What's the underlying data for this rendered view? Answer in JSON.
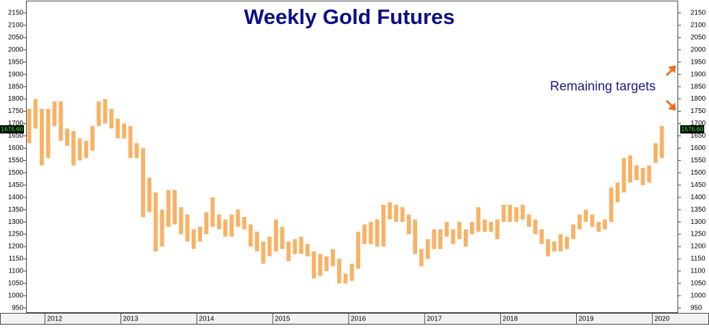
{
  "chart_data": {
    "type": "range_bar",
    "title": "Weekly Gold Futures",
    "annotation": "Remaining targets",
    "color": "#f7a54a",
    "last_price": {
      "value": 1676.6,
      "label": "1676.60"
    },
    "xlim": [
      2011.75,
      2020.34
    ],
    "xticks": [
      2012,
      2013,
      2014,
      2015,
      2016,
      2017,
      2018,
      2019,
      2020
    ],
    "ylim": [
      930,
      2197
    ],
    "yticks": [
      950,
      1000,
      1050,
      1100,
      1150,
      1200,
      1250,
      1300,
      1350,
      1400,
      1450,
      1500,
      1550,
      1600,
      1650,
      1700,
      1750,
      1800,
      1850,
      1900,
      1950,
      2000,
      2050,
      2100,
      2150
    ],
    "x": [
      2011.792,
      2011.875,
      2011.958,
      2012.042,
      2012.125,
      2012.208,
      2012.292,
      2012.375,
      2012.458,
      2012.542,
      2012.625,
      2012.708,
      2012.792,
      2012.875,
      2012.958,
      2013.042,
      2013.125,
      2013.208,
      2013.292,
      2013.375,
      2013.458,
      2013.542,
      2013.625,
      2013.708,
      2013.792,
      2013.875,
      2013.958,
      2014.042,
      2014.125,
      2014.208,
      2014.292,
      2014.375,
      2014.458,
      2014.542,
      2014.625,
      2014.708,
      2014.792,
      2014.875,
      2014.958,
      2015.042,
      2015.125,
      2015.208,
      2015.292,
      2015.375,
      2015.458,
      2015.542,
      2015.625,
      2015.708,
      2015.792,
      2015.875,
      2015.958,
      2016.042,
      2016.125,
      2016.208,
      2016.292,
      2016.375,
      2016.458,
      2016.542,
      2016.625,
      2016.708,
      2016.792,
      2016.875,
      2016.958,
      2017.042,
      2017.125,
      2017.208,
      2017.292,
      2017.375,
      2017.458,
      2017.542,
      2017.625,
      2017.708,
      2017.792,
      2017.875,
      2017.958,
      2018.042,
      2018.125,
      2018.208,
      2018.292,
      2018.375,
      2018.458,
      2018.542,
      2018.625,
      2018.708,
      2018.792,
      2018.875,
      2018.958,
      2019.042,
      2019.125,
      2019.208,
      2019.292,
      2019.375,
      2019.458,
      2019.542,
      2019.625,
      2019.708,
      2019.792,
      2019.875,
      2019.958,
      2020.042,
      2020.125
    ],
    "low": [
      1620,
      1680,
      1530,
      1560,
      1690,
      1630,
      1610,
      1530,
      1550,
      1560,
      1590,
      1690,
      1700,
      1680,
      1640,
      1640,
      1560,
      1560,
      1320,
      1340,
      1180,
      1200,
      1280,
      1290,
      1250,
      1220,
      1190,
      1220,
      1250,
      1280,
      1270,
      1240,
      1240,
      1280,
      1270,
      1200,
      1180,
      1130,
      1160,
      1180,
      1190,
      1140,
      1170,
      1170,
      1160,
      1070,
      1080,
      1100,
      1120,
      1050,
      1050,
      1060,
      1110,
      1210,
      1210,
      1200,
      1200,
      1310,
      1300,
      1300,
      1250,
      1170,
      1120,
      1150,
      1190,
      1190,
      1240,
      1210,
      1230,
      1200,
      1250,
      1260,
      1260,
      1260,
      1230,
      1300,
      1300,
      1300,
      1310,
      1280,
      1250,
      1210,
      1160,
      1180,
      1180,
      1190,
      1230,
      1270,
      1300,
      1280,
      1260,
      1270,
      1300,
      1380,
      1420,
      1460,
      1470,
      1450,
      1460,
      1540,
      1560
    ],
    "high": [
      1760,
      1800,
      1760,
      1760,
      1790,
      1790,
      1680,
      1670,
      1640,
      1630,
      1690,
      1790,
      1800,
      1760,
      1720,
      1700,
      1690,
      1620,
      1600,
      1480,
      1420,
      1350,
      1430,
      1430,
      1360,
      1330,
      1270,
      1280,
      1340,
      1400,
      1330,
      1310,
      1330,
      1350,
      1320,
      1290,
      1260,
      1220,
      1240,
      1310,
      1280,
      1220,
      1230,
      1240,
      1210,
      1180,
      1170,
      1160,
      1190,
      1150,
      1090,
      1130,
      1260,
      1290,
      1300,
      1310,
      1370,
      1380,
      1370,
      1360,
      1330,
      1310,
      1190,
      1230,
      1270,
      1270,
      1300,
      1270,
      1300,
      1270,
      1300,
      1360,
      1310,
      1300,
      1310,
      1370,
      1370,
      1360,
      1370,
      1330,
      1310,
      1270,
      1230,
      1220,
      1250,
      1240,
      1290,
      1330,
      1350,
      1330,
      1300,
      1310,
      1440,
      1460,
      1560,
      1570,
      1530,
      1520,
      1530,
      1620,
      1690
    ]
  }
}
